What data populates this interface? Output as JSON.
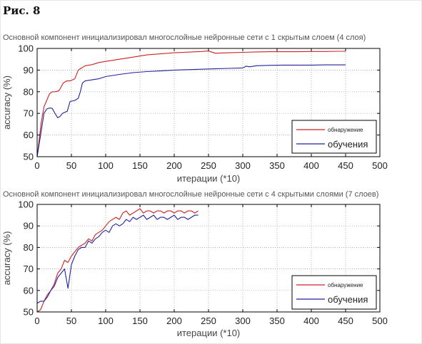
{
  "figure_label": "Рис. 8",
  "colors": {
    "detection": "#cc2222",
    "training": "#22229e",
    "axis": "#000000",
    "grid": "#999999"
  },
  "chart_data": [
    {
      "type": "line",
      "title": "Основной компонент инициализировал многослойные нейронные сети с 1 скрытым слоем (4 слоя)",
      "xlabel": "итерации (*10)",
      "ylabel": "accuracy (%)",
      "xlim": [
        0,
        500
      ],
      "ylim": [
        50,
        100
      ],
      "xticks": [
        "0",
        "50",
        "100",
        "150",
        "200",
        "250",
        "300",
        "350",
        "400",
        "450",
        "500"
      ],
      "yticks": [
        "50",
        "60",
        "70",
        "80",
        "90",
        "100"
      ],
      "grid": true,
      "legend_position": "bottom-right",
      "series": [
        {
          "name": "обнаружение",
          "color": "#cc2222",
          "x": [
            0,
            3,
            6,
            10,
            14,
            18,
            22,
            27,
            32,
            38,
            43,
            48,
            55,
            60,
            65,
            70,
            80,
            90,
            100,
            120,
            140,
            160,
            180,
            200,
            220,
            240,
            250,
            255,
            260,
            280,
            300,
            320,
            340,
            360,
            380,
            400,
            420,
            440,
            450
          ],
          "y": [
            50,
            58,
            66,
            73,
            76,
            79,
            80,
            80,
            80.5,
            84,
            85,
            85,
            86,
            90,
            91,
            92,
            92.5,
            93.5,
            94,
            95,
            96,
            97,
            97.5,
            98,
            98.3,
            98.6,
            98.8,
            98.3,
            97.8,
            98,
            98.2,
            98.4,
            98.5,
            98.5,
            98.5,
            98.6,
            98.6,
            98.7,
            98.7
          ]
        },
        {
          "name": "обучения",
          "color": "#22229e",
          "x": [
            0,
            3,
            6,
            10,
            14,
            18,
            22,
            26,
            30,
            33,
            37,
            40,
            44,
            48,
            55,
            60,
            63,
            66,
            70,
            80,
            90,
            100,
            120,
            140,
            160,
            180,
            200,
            220,
            240,
            260,
            280,
            300,
            305,
            310,
            320,
            340,
            360,
            380,
            400,
            420,
            440,
            450
          ],
          "y": [
            50,
            56,
            62,
            70,
            72,
            72.5,
            72.3,
            70,
            68,
            68.5,
            70,
            70.5,
            71,
            75.5,
            76,
            77,
            80,
            84,
            85,
            85.5,
            86,
            87,
            88,
            88.8,
            89.3,
            89.6,
            90,
            90.2,
            90.4,
            90.6,
            90.8,
            91,
            91.8,
            91.5,
            92,
            92.2,
            92.3,
            92.3,
            92.3,
            92.4,
            92.4,
            92.4
          ]
        }
      ]
    },
    {
      "type": "line",
      "title": "Основной компонент инициализировал многослойные нейронные сети с 4 скрытыми слоями (7 слоев)",
      "xlabel": "итерации (*10)",
      "ylabel": "accuracy (%)",
      "xlim": [
        0,
        500
      ],
      "ylim": [
        50,
        100
      ],
      "xticks": [
        "0",
        "50",
        "100",
        "150",
        "200",
        "250",
        "300",
        "350",
        "400",
        "450",
        "500"
      ],
      "yticks": [
        "50",
        "60",
        "70",
        "80",
        "90",
        "100"
      ],
      "grid": true,
      "legend_position": "bottom-right",
      "series": [
        {
          "name": "обнаружение",
          "color": "#cc2222",
          "x": [
            0,
            5,
            10,
            15,
            20,
            25,
            30,
            35,
            40,
            45,
            50,
            55,
            60,
            65,
            70,
            75,
            80,
            85,
            90,
            95,
            100,
            105,
            110,
            115,
            120,
            125,
            130,
            135,
            140,
            145,
            150,
            155,
            160,
            165,
            170,
            175,
            180,
            185,
            190,
            195,
            200,
            205,
            210,
            215,
            220,
            225,
            230,
            235
          ],
          "y": [
            50,
            51,
            55,
            58,
            60,
            63,
            68,
            70,
            74,
            73,
            76,
            78,
            80,
            81,
            82,
            84,
            83,
            86,
            87,
            88,
            90,
            92,
            93,
            94,
            93,
            96,
            97,
            95,
            96,
            97,
            98,
            96,
            97,
            97,
            96,
            97,
            97,
            96,
            97,
            97,
            96,
            97,
            97,
            96,
            97,
            97,
            96,
            97
          ]
        },
        {
          "name": "обучения",
          "color": "#22229e",
          "x": [
            0,
            5,
            10,
            15,
            20,
            25,
            30,
            35,
            40,
            45,
            50,
            55,
            60,
            65,
            70,
            75,
            80,
            85,
            90,
            95,
            100,
            105,
            110,
            115,
            120,
            125,
            130,
            135,
            140,
            145,
            150,
            155,
            160,
            165,
            170,
            175,
            180,
            185,
            190,
            195,
            200,
            205,
            210,
            215,
            220,
            225,
            230,
            235
          ],
          "y": [
            54,
            55,
            55,
            57,
            60,
            62,
            66,
            68,
            70,
            61,
            72,
            76,
            79,
            80,
            80,
            83,
            82,
            84,
            85,
            87,
            88,
            87,
            90,
            91,
            90,
            91,
            93,
            92,
            94,
            93,
            94,
            95,
            93,
            94,
            95,
            93,
            94,
            94,
            93,
            94,
            95,
            93,
            94,
            94,
            93,
            94,
            95,
            95
          ]
        }
      ]
    }
  ]
}
